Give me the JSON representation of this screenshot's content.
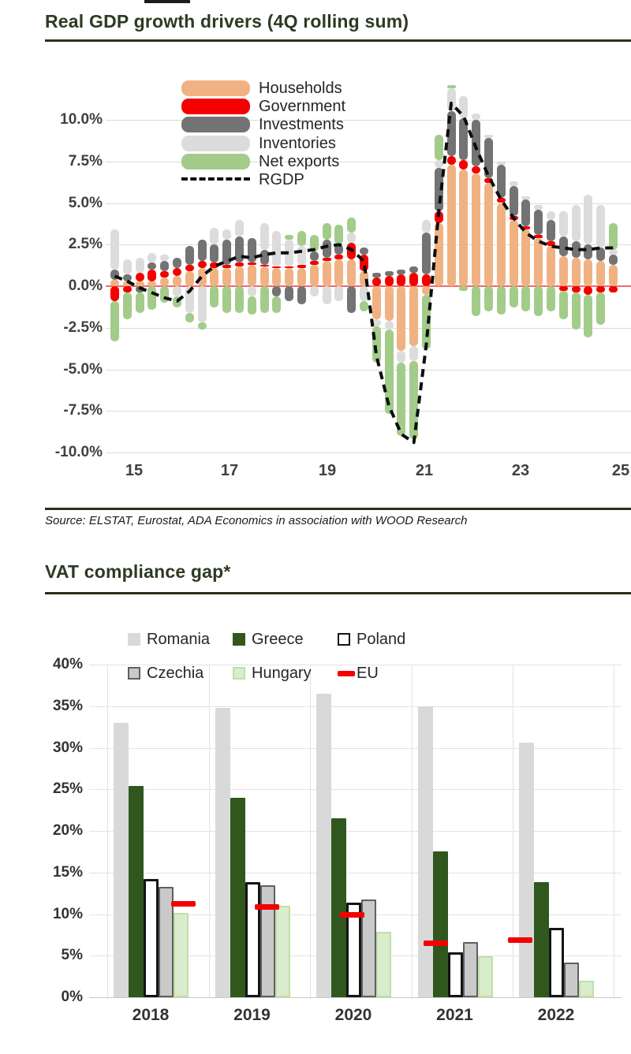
{
  "page": {
    "chart1_title": "Real GDP growth drivers (4Q rolling sum)",
    "source": "Source: ELSTAT, Eurostat, ADA Economics in association with WOOD Research",
    "chart2_title": "VAT compliance gap*"
  },
  "chart_data": [
    {
      "type": "stacked-bar-with-line",
      "title": "Real GDP growth drivers (4Q rolling sum)",
      "x_start": "2015Q1",
      "x_frequency": "quarterly",
      "x_tick_labels": [
        "15",
        "17",
        "19",
        "21",
        "23",
        "25"
      ],
      "y_tick_labels": [
        "10.0%",
        "7.5%",
        "5.0%",
        "2.5%",
        "0.0%",
        "-2.5%",
        "-5.0%",
        "-7.5%",
        "-10.0%"
      ],
      "y_tick_values": [
        10,
        7.5,
        5,
        2.5,
        0,
        -2.5,
        -5,
        -7.5,
        -10
      ],
      "ylim": [
        -10.5,
        12.2
      ],
      "grid": true,
      "legend_position": "upper-left-inside",
      "zero_line_color": "#f26a6a",
      "series": [
        {
          "name": "Households",
          "color": "#F0B282",
          "values": [
            0.4,
            0.3,
            0.3,
            0.3,
            0.5,
            0.6,
            0.9,
            1.1,
            1.1,
            1.1,
            1.2,
            1.3,
            1.2,
            1.1,
            1.1,
            1.1,
            1.3,
            1.5,
            1.6,
            1.6,
            0.9,
            -2.0,
            -2.1,
            -3.9,
            -3.6,
            -0.5,
            3.8,
            7.3,
            7.0,
            6.8,
            6.2,
            5.0,
            4.0,
            3.4,
            2.9,
            2.4,
            1.8,
            1.7,
            1.6,
            1.5,
            1.3
          ]
        },
        {
          "name": "Government",
          "color": "#F40000",
          "values": [
            -0.9,
            -0.4,
            0.5,
            0.7,
            0.4,
            0.5,
            0.4,
            0.4,
            0.3,
            0.2,
            0.2,
            0.1,
            0.1,
            0.1,
            0.1,
            0.2,
            0.2,
            0.2,
            0.3,
            1.0,
            1.0,
            0.5,
            0.6,
            0.7,
            0.8,
            0.7,
            0.7,
            0.5,
            0.6,
            0.4,
            0.3,
            0.3,
            0.2,
            0.2,
            0.2,
            0.3,
            -0.3,
            -0.4,
            -0.5,
            -0.4,
            -0.4
          ]
        },
        {
          "name": "Investments",
          "color": "#737373",
          "values": [
            0.6,
            0.4,
            -0.4,
            0.4,
            0.6,
            0.6,
            1.1,
            1.3,
            1.1,
            1.5,
            1.6,
            1.5,
            0.9,
            -0.6,
            -0.9,
            -1.1,
            0.6,
            1.1,
            0.6,
            -1.6,
            0.4,
            0.3,
            0.3,
            0.3,
            0.4,
            2.5,
            2.6,
            2.7,
            2.5,
            2.8,
            2.4,
            2.0,
            1.8,
            1.6,
            1.5,
            1.3,
            1.2,
            1.0,
            0.9,
            0.8,
            0.6
          ]
        },
        {
          "name": "Inventories",
          "color": "#DCDCDC",
          "values": [
            2.4,
            0.9,
            0.9,
            0.6,
            0.4,
            -0.6,
            -1.6,
            -2.2,
            1.0,
            0.6,
            1.0,
            -0.6,
            1.6,
            2.1,
            1.6,
            1.1,
            -0.6,
            -1.1,
            -0.9,
            0.6,
            -0.9,
            -0.4,
            -0.5,
            -0.7,
            -0.9,
            0.8,
            0.5,
            1.4,
            1.3,
            0.4,
            0.2,
            0.2,
            0.3,
            0.2,
            0.3,
            0.5,
            1.5,
            2.2,
            3.0,
            2.6,
            0.3
          ]
        },
        {
          "name": "Net exports",
          "color": "#A3CC8A",
          "values": [
            -2.4,
            -1.6,
            -1.2,
            -1.4,
            -1.0,
            -0.7,
            -0.6,
            -0.4,
            -1.3,
            -1.6,
            -1.6,
            -1.1,
            -1.6,
            -1.0,
            0.3,
            0.9,
            1.0,
            1.0,
            1.2,
            0.9,
            -0.6,
            -2.2,
            -5.1,
            -4.4,
            -4.7,
            -3.3,
            1.5,
            0.2,
            -0.3,
            -1.8,
            -1.5,
            -1.7,
            -1.3,
            -1.5,
            -1.8,
            -1.5,
            -1.7,
            -2.2,
            -2.6,
            -1.9,
            1.6
          ]
        }
      ],
      "line_series": {
        "name": "RGDP",
        "color": "#0d0d0d",
        "style": "dashed",
        "values": [
          0.6,
          0.3,
          -0.1,
          -0.4,
          -0.7,
          -0.9,
          -0.3,
          0.6,
          1.2,
          1.5,
          1.8,
          1.7,
          1.9,
          2.0,
          2.0,
          2.1,
          2.2,
          2.4,
          2.5,
          2.2,
          1.5,
          -4.2,
          -7.2,
          -8.9,
          -9.4,
          -3.5,
          4.5,
          11.0,
          10.2,
          8.3,
          6.6,
          5.2,
          4.1,
          3.2,
          2.7,
          2.4,
          2.3,
          2.2,
          2.2,
          2.3,
          2.3
        ]
      }
    },
    {
      "type": "bar",
      "title": "VAT compliance gap*",
      "categories": [
        "2018",
        "2019",
        "2020",
        "2021",
        "2022"
      ],
      "y_tick_labels": [
        "40%",
        "35%",
        "30%",
        "25%",
        "20%",
        "15%",
        "10%",
        "5%",
        "0%"
      ],
      "y_tick_values": [
        40,
        35,
        30,
        25,
        20,
        15,
        10,
        5,
        0
      ],
      "ylim": [
        0,
        40
      ],
      "grid": true,
      "legend_position": "top",
      "series": [
        {
          "name": "Romania",
          "color": "#D9D9D9",
          "values": [
            33.0,
            34.8,
            36.5,
            35.0,
            30.6
          ]
        },
        {
          "name": "Greece",
          "color": "#30571D",
          "values": [
            25.4,
            24.0,
            21.5,
            17.5,
            13.8
          ]
        },
        {
          "name": "Poland",
          "color": "#FFFFFF",
          "border": "#141414",
          "values": [
            14.2,
            13.8,
            11.4,
            5.4,
            8.3
          ]
        },
        {
          "name": "Czechia",
          "color": "#C9C9C9",
          "border": "#5f5f5f",
          "pattern": "dots",
          "values": [
            13.3,
            13.5,
            11.8,
            6.6,
            4.2
          ]
        },
        {
          "name": "Hungary",
          "color": "#D9ECCB",
          "border": "#bfe0aa",
          "values": [
            10.1,
            11.0,
            7.9,
            4.9,
            2.0
          ]
        },
        {
          "name": "EU",
          "color": "#F40000",
          "marker": "dash",
          "values": [
            11.2,
            10.9,
            9.9,
            6.5,
            6.9
          ]
        }
      ]
    }
  ]
}
